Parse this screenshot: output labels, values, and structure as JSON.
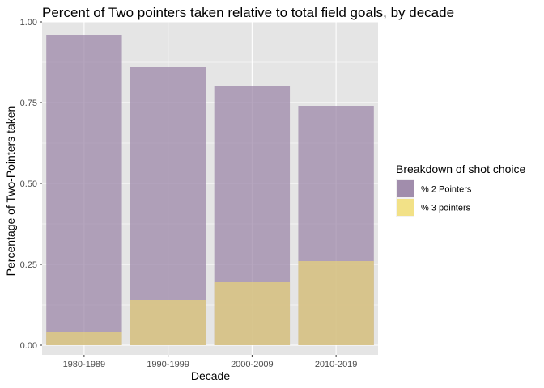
{
  "chart_data": {
    "type": "bar",
    "stacked": false,
    "overlaid": true,
    "title": "Percent of Two pointers taken relative to total field goals, by decade",
    "xlabel": "Decade",
    "ylabel": "Percentage of Two-Pointers taken",
    "categories": [
      "1980-1989",
      "1990-1999",
      "2000-2009",
      "2010-2019"
    ],
    "series": [
      {
        "name": "% 2 Pointers",
        "values": [
          0.96,
          0.86,
          0.8,
          0.74
        ],
        "color": "#9a84a6"
      },
      {
        "name": "% 3 pointers",
        "values": [
          0.04,
          0.14,
          0.195,
          0.26
        ],
        "color": "#e6d27c"
      }
    ],
    "ylim": [
      -0.03,
      1.0
    ],
    "yticks": [
      0.0,
      0.25,
      0.5,
      0.75,
      1.0
    ],
    "ytick_labels": [
      "0.00",
      "0.25",
      "0.50",
      "0.75",
      "1.00"
    ],
    "grid": true,
    "legend": {
      "title": "Breakdown of shot choice",
      "position": "right",
      "items": [
        {
          "label": "% 2 Pointers",
          "color": "#9a84a6"
        },
        {
          "label": "% 3 pointers",
          "color": "#f2e07e"
        }
      ]
    },
    "panel_background": "#e5e5e5",
    "grid_color": "#ffffff"
  }
}
